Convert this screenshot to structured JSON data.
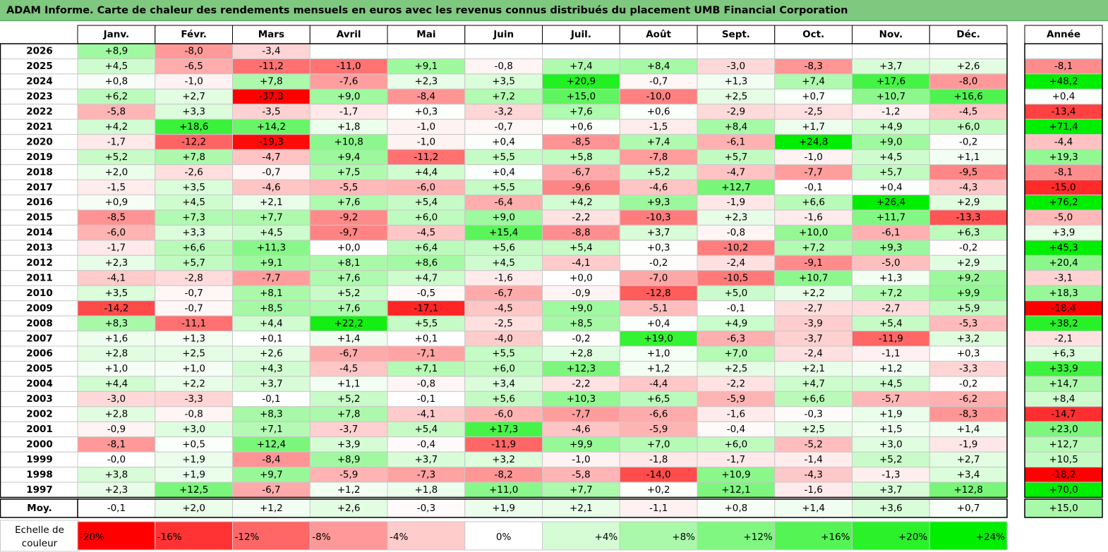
{
  "title": "ADAM Informe. Carte de chaleur des rendements mensuels en euros avec les revenus connus distribués du placement UMB Financial Corporation",
  "chart_data": {
    "type": "heatmap",
    "title": "ADAM Informe. Carte de chaleur des rendements mensuels en euros avec les revenus connus distribués du placement UMB Financial Corporation",
    "columns": [
      "Janv.",
      "Févr.",
      "Mars",
      "Avril",
      "Mai",
      "Juin",
      "Juil.",
      "Août",
      "Sept.",
      "Oct.",
      "Nov.",
      "Déc."
    ],
    "year_column_label": "Année",
    "rows": [
      {
        "label": "2026",
        "values": [
          "+8,9",
          "-8,0",
          "-3,4",
          "",
          "",
          "",
          "",
          "",
          "",
          "",
          "",
          ""
        ],
        "year": ""
      },
      {
        "label": "2025",
        "values": [
          "+4,5",
          "-6,5",
          "-11,2",
          "-11,0",
          "+9,1",
          "-0,8",
          "+7,4",
          "+8,4",
          "-3,0",
          "-8,3",
          "+3,7",
          "+2,6"
        ],
        "year": "-8,1"
      },
      {
        "label": "2024",
        "values": [
          "+0,8",
          "-1,0",
          "+7,8",
          "-7,6",
          "+2,3",
          "+3,5",
          "+20,9",
          "-0,7",
          "+1,3",
          "+7,4",
          "+17,6",
          "-8,0"
        ],
        "year": "+48,2"
      },
      {
        "label": "2023",
        "values": [
          "+6,2",
          "+2,7",
          "-37,3",
          "+9,0",
          "-8,4",
          "+7,2",
          "+15,0",
          "-10,0",
          "+2,5",
          "+0,7",
          "+10,7",
          "+16,6"
        ],
        "year": "+0,4"
      },
      {
        "label": "2022",
        "values": [
          "-5,8",
          "+3,3",
          "-3,5",
          "-1,7",
          "+0,3",
          "-3,2",
          "+7,6",
          "+0,6",
          "-2,9",
          "-2,5",
          "-1,2",
          "-4,5"
        ],
        "year": "-13,4"
      },
      {
        "label": "2021",
        "values": [
          "+4,2",
          "+18,6",
          "+14,2",
          "+1,8",
          "-1,0",
          "-0,7",
          "+0,6",
          "-1,5",
          "+8,4",
          "+1,7",
          "+4,9",
          "+6,0"
        ],
        "year": "+71,4"
      },
      {
        "label": "2020",
        "values": [
          "-1,7",
          "-12,2",
          "-19,3",
          "+10,8",
          "-1,0",
          "+0,4",
          "-8,5",
          "+7,4",
          "-6,1",
          "+24,8",
          "+9,0",
          "-0,2"
        ],
        "year": "-4,4"
      },
      {
        "label": "2019",
        "values": [
          "+5,2",
          "+7,8",
          "-4,7",
          "+9,4",
          "-11,2",
          "+5,5",
          "+5,8",
          "-7,8",
          "+5,7",
          "-1,0",
          "+4,5",
          "+1,1"
        ],
        "year": "+19,3"
      },
      {
        "label": "2018",
        "values": [
          "+2,0",
          "-2,6",
          "-0,7",
          "+7,5",
          "+4,4",
          "+0,4",
          "-6,7",
          "+5,2",
          "-4,7",
          "-7,7",
          "+5,7",
          "-9,5"
        ],
        "year": "-8,1"
      },
      {
        "label": "2017",
        "values": [
          "-1,5",
          "+3,5",
          "-4,6",
          "-5,5",
          "-6,0",
          "+5,5",
          "-9,6",
          "-4,6",
          "+12,7",
          "-0,1",
          "+0,4",
          "-4,3"
        ],
        "year": "-15,0"
      },
      {
        "label": "2016",
        "values": [
          "+0,9",
          "+4,5",
          "+2,1",
          "+7,6",
          "+5,4",
          "-6,4",
          "+4,2",
          "+9,3",
          "-1,9",
          "+6,6",
          "+26,4",
          "+2,9"
        ],
        "year": "+76,2"
      },
      {
        "label": "2015",
        "values": [
          "-8,5",
          "+7,3",
          "+7,7",
          "-9,2",
          "+6,0",
          "+9,0",
          "-2,2",
          "-10,3",
          "+2,3",
          "-1,6",
          "+11,7",
          "-13,3"
        ],
        "year": "-5,0"
      },
      {
        "label": "2014",
        "values": [
          "-6,0",
          "+3,3",
          "+4,5",
          "-9,7",
          "-4,5",
          "+15,4",
          "-8,8",
          "+3,7",
          "-0,8",
          "+10,0",
          "-6,1",
          "+6,3"
        ],
        "year": "+3,9"
      },
      {
        "label": "2013",
        "values": [
          "-1,7",
          "+6,6",
          "+11,3",
          "+0,0",
          "+6,4",
          "+5,6",
          "+5,4",
          "+0,3",
          "-10,2",
          "+7,2",
          "+9,3",
          "-0,2"
        ],
        "year": "+45,3"
      },
      {
        "label": "2012",
        "values": [
          "+2,3",
          "+5,7",
          "+9,1",
          "+8,1",
          "+8,6",
          "+4,5",
          "-4,1",
          "-0,2",
          "-2,4",
          "-9,1",
          "-5,0",
          "+2,9"
        ],
        "year": "+20,4"
      },
      {
        "label": "2011",
        "values": [
          "-4,1",
          "-2,8",
          "-7,7",
          "+7,6",
          "+4,7",
          "-1,6",
          "+0,0",
          "-7,0",
          "-10,5",
          "+10,7",
          "+1,3",
          "+9,2"
        ],
        "year": "-3,1"
      },
      {
        "label": "2010",
        "values": [
          "+3,5",
          "-0,7",
          "+8,1",
          "+5,2",
          "-0,5",
          "-6,7",
          "-0,9",
          "-12,8",
          "+5,0",
          "+2,2",
          "+7,2",
          "+9,9"
        ],
        "year": "+18,3"
      },
      {
        "label": "2009",
        "values": [
          "-14,2",
          "-0,7",
          "+8,5",
          "+7,6",
          "-17,1",
          "-4,5",
          "+9,0",
          "-5,1",
          "-0,1",
          "-2,7",
          "-2,7",
          "+5,9"
        ],
        "year": "-18,4"
      },
      {
        "label": "2008",
        "values": [
          "+8,3",
          "-11,1",
          "+4,4",
          "+22,2",
          "+5,5",
          "-2,5",
          "+8,5",
          "+0,4",
          "+4,9",
          "-3,9",
          "+5,4",
          "-5,3"
        ],
        "year": "+38,2"
      },
      {
        "label": "2007",
        "values": [
          "+1,6",
          "+1,3",
          "+0,1",
          "+1,4",
          "+0,1",
          "-4,0",
          "-0,2",
          "+19,0",
          "-6,3",
          "-3,7",
          "-11,9",
          "+3,2"
        ],
        "year": "-2,1"
      },
      {
        "label": "2006",
        "values": [
          "+2,8",
          "+2,5",
          "+2,6",
          "-6,7",
          "-7,1",
          "+5,5",
          "+2,8",
          "+1,0",
          "+7,0",
          "-2,4",
          "-1,1",
          "+0,3"
        ],
        "year": "+6,3"
      },
      {
        "label": "2005",
        "values": [
          "+1,0",
          "+1,0",
          "+4,3",
          "-4,5",
          "+7,1",
          "+6,0",
          "+12,3",
          "+1,2",
          "+2,5",
          "+2,1",
          "+1,2",
          "-3,3"
        ],
        "year": "+33,9"
      },
      {
        "label": "2004",
        "values": [
          "+4,4",
          "+2,2",
          "+3,7",
          "+1,1",
          "-0,8",
          "+3,4",
          "-2,2",
          "-4,4",
          "-2,2",
          "+4,7",
          "+4,5",
          "-0,2"
        ],
        "year": "+14,7"
      },
      {
        "label": "2003",
        "values": [
          "-3,0",
          "-3,3",
          "-0,1",
          "+5,2",
          "-0,1",
          "+5,6",
          "+10,3",
          "+6,5",
          "-5,9",
          "+6,6",
          "-5,7",
          "-6,2"
        ],
        "year": "+8,4"
      },
      {
        "label": "2002",
        "values": [
          "+2,8",
          "-0,8",
          "+8,3",
          "+7,8",
          "-4,1",
          "-6,0",
          "-7,7",
          "-6,6",
          "-1,6",
          "-0,3",
          "+1,9",
          "-8,3"
        ],
        "year": "-14,7"
      },
      {
        "label": "2001",
        "values": [
          "-0,9",
          "+3,0",
          "+7,1",
          "-3,7",
          "+5,4",
          "+17,3",
          "-4,6",
          "-5,9",
          "-0,4",
          "+2,5",
          "+1,5",
          "+1,4"
        ],
        "year": "+23,0"
      },
      {
        "label": "2000",
        "values": [
          "-8,1",
          "+0,5",
          "+12,4",
          "+3,9",
          "-0,4",
          "-11,9",
          "+9,9",
          "+7,0",
          "+6,0",
          "-5,2",
          "+3,0",
          "-1,9"
        ],
        "year": "+12,7"
      },
      {
        "label": "1999",
        "values": [
          "-0,0",
          "+1,9",
          "-8,4",
          "+8,9",
          "+3,7",
          "+3,2",
          "-1,0",
          "-1,8",
          "-1,7",
          "-1,4",
          "+5,2",
          "+2,7"
        ],
        "year": "+10,5"
      },
      {
        "label": "1998",
        "values": [
          "+3,8",
          "+1,9",
          "+9,7",
          "-5,9",
          "-7,3",
          "-8,2",
          "-5,8",
          "-14,0",
          "+10,9",
          "-4,3",
          "-1,3",
          "+3,4"
        ],
        "year": "-18,2"
      },
      {
        "label": "1997",
        "values": [
          "+2,3",
          "+12,5",
          "-6,7",
          "+1,2",
          "+1,8",
          "+11,0",
          "+7,7",
          "+0,2",
          "+12,1",
          "-1,6",
          "+3,7",
          "+12,8"
        ],
        "year": "+70,0"
      }
    ],
    "average_row": {
      "label": "Moy.",
      "values": [
        "-0,1",
        "+2,0",
        "+1,2",
        "+2,6",
        "-0,3",
        "+1,9",
        "+2,1",
        "-1,1",
        "+0,8",
        "+1,4",
        "+3,6",
        "+0,7"
      ],
      "year": "+15,0"
    },
    "scale": {
      "label_lines": [
        "Echelle de",
        "couleur"
      ],
      "steps": [
        {
          "label": "-20%",
          "value": -20
        },
        {
          "label": "-16%",
          "value": -16
        },
        {
          "label": "-12%",
          "value": -12
        },
        {
          "label": "-8%",
          "value": -8
        },
        {
          "label": "-4%",
          "value": -4
        },
        {
          "label": "0%",
          "value": 0
        },
        {
          "label": "+4%",
          "value": 4
        },
        {
          "label": "+8%",
          "value": 8
        },
        {
          "label": "+12%",
          "value": 12
        },
        {
          "label": "+16%",
          "value": 16
        },
        {
          "label": "+20%",
          "value": 20
        },
        {
          "label": "+24%",
          "value": 24
        }
      ]
    },
    "colors": {
      "negative": "#ff0000",
      "neutral": "#ffffff",
      "positive": "#00ee00",
      "title_bar": "#7fc87f",
      "grid": "#c8c8c8"
    }
  }
}
